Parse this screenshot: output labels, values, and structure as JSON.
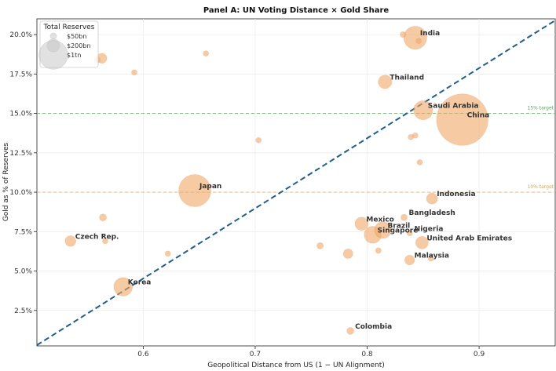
{
  "chart_data": {
    "type": "scatter",
    "title": "Panel A: UN Voting Distance × Gold Share",
    "xlabel": "Geopolitical Distance from US  (1 − UN Alignment)",
    "ylabel": "Gold as % of Reserves",
    "xlim": [
      0.505,
      0.968
    ],
    "ylim": [
      0.25,
      21.0
    ],
    "x_ticks": [
      {
        "value": 0.6,
        "label": "0.6"
      },
      {
        "value": 0.7,
        "label": "0.7"
      },
      {
        "value": 0.8,
        "label": "0.8"
      },
      {
        "value": 0.9,
        "label": "0.9"
      }
    ],
    "y_ticks": [
      {
        "value": 2.5,
        "label": "2.5%"
      },
      {
        "value": 5.0,
        "label": "5.0%"
      },
      {
        "value": 7.5,
        "label": "7.5%"
      },
      {
        "value": 10.0,
        "label": "10.0%"
      },
      {
        "value": 12.5,
        "label": "12.5%"
      },
      {
        "value": 15.0,
        "label": "15.0%"
      },
      {
        "value": 17.5,
        "label": "17.5%"
      },
      {
        "value": 20.0,
        "label": "20.0%"
      }
    ],
    "grid": true,
    "marker_color": "#f0a868",
    "marker_opacity": 0.6,
    "trend_line": {
      "style": "dashed",
      "color": "#1f5f8b",
      "from": [
        0.505,
        0.3
      ],
      "to": [
        0.968,
        20.9
      ]
    },
    "reference_lines": [
      {
        "y": 15.0,
        "label": "15% target",
        "color": "#55aa55"
      },
      {
        "y": 10.0,
        "label": "10% target",
        "color": "#d4a84a"
      }
    ],
    "legend": {
      "title": "Total Reserves",
      "placement": "top-left",
      "entries": [
        {
          "label": "$50bn",
          "reserves_bn": 50
        },
        {
          "label": "$200bn",
          "reserves_bn": 200
        },
        {
          "label": "$1tn",
          "reserves_bn": 1000
        }
      ]
    },
    "points": [
      {
        "name": "India",
        "x": 0.843,
        "y": 19.8,
        "reserves_bn": 640
      },
      {
        "name": "",
        "x": 0.832,
        "y": 20.0,
        "reserves_bn": 40
      },
      {
        "name": "",
        "x": 0.846,
        "y": 19.6,
        "reserves_bn": 25
      },
      {
        "name": "Thailand",
        "x": 0.816,
        "y": 17.0,
        "reserves_bn": 220
      },
      {
        "name": "Saudi Arabia",
        "x": 0.85,
        "y": 15.2,
        "reserves_bn": 440
      },
      {
        "name": "China",
        "x": 0.885,
        "y": 14.6,
        "reserves_bn": 3200
      },
      {
        "name": "Indonesia",
        "x": 0.858,
        "y": 9.6,
        "reserves_bn": 150
      },
      {
        "name": "Bangladesh",
        "x": 0.833,
        "y": 8.4,
        "reserves_bn": 50
      },
      {
        "name": "Mexico",
        "x": 0.795,
        "y": 8.0,
        "reserves_bn": 210
      },
      {
        "name": "Brazil",
        "x": 0.814,
        "y": 7.6,
        "reserves_bn": 340
      },
      {
        "name": "Singapore",
        "x": 0.805,
        "y": 7.3,
        "reserves_bn": 350
      },
      {
        "name": "Nigeria",
        "x": 0.838,
        "y": 7.4,
        "reserves_bn": 35
      },
      {
        "name": "United Arab Emirates",
        "x": 0.849,
        "y": 6.8,
        "reserves_bn": 190
      },
      {
        "name": "Malaysia",
        "x": 0.838,
        "y": 5.7,
        "reserves_bn": 115
      },
      {
        "name": "",
        "x": 0.857,
        "y": 5.8,
        "reserves_bn": 30
      },
      {
        "name": "",
        "x": 0.81,
        "y": 6.3,
        "reserves_bn": 40
      },
      {
        "name": "",
        "x": 0.783,
        "y": 6.1,
        "reserves_bn": 110
      },
      {
        "name": "",
        "x": 0.758,
        "y": 6.6,
        "reserves_bn": 50
      },
      {
        "name": "Colombia",
        "x": 0.785,
        "y": 1.2,
        "reserves_bn": 60
      },
      {
        "name": "Japan",
        "x": 0.646,
        "y": 10.1,
        "reserves_bn": 1250
      },
      {
        "name": "Czech Rep.",
        "x": 0.535,
        "y": 6.9,
        "reserves_bn": 140
      },
      {
        "name": "Korea",
        "x": 0.582,
        "y": 4.0,
        "reserves_bn": 420
      },
      {
        "name": "",
        "x": 0.564,
        "y": 8.4,
        "reserves_bn": 60
      },
      {
        "name": "",
        "x": 0.566,
        "y": 6.9,
        "reserves_bn": 20
      },
      {
        "name": "",
        "x": 0.622,
        "y": 6.1,
        "reserves_bn": 25
      },
      {
        "name": "",
        "x": 0.563,
        "y": 18.5,
        "reserves_bn": 120
      },
      {
        "name": "",
        "x": 0.559,
        "y": 18.4,
        "reserves_bn": 45
      },
      {
        "name": "",
        "x": 0.592,
        "y": 17.6,
        "reserves_bn": 25
      },
      {
        "name": "",
        "x": 0.656,
        "y": 18.8,
        "reserves_bn": 20
      },
      {
        "name": "",
        "x": 0.703,
        "y": 13.3,
        "reserves_bn": 30
      },
      {
        "name": "",
        "x": 0.839,
        "y": 13.5,
        "reserves_bn": 20
      },
      {
        "name": "",
        "x": 0.843,
        "y": 13.6,
        "reserves_bn": 20
      },
      {
        "name": "",
        "x": 0.847,
        "y": 11.9,
        "reserves_bn": 30
      }
    ]
  }
}
